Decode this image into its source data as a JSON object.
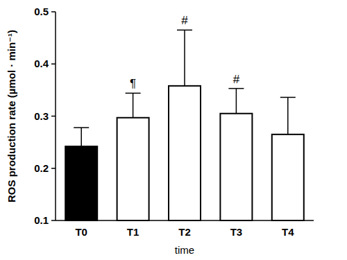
{
  "chart_data": {
    "type": "bar",
    "x_label": "time",
    "y_label": "ROS production rate (µmol · min⁻¹)",
    "categories": [
      "T0",
      "T1",
      "T2",
      "T3",
      "T4"
    ],
    "values": [
      0.242,
      0.297,
      0.358,
      0.305,
      0.265
    ],
    "errors": [
      0.036,
      0.047,
      0.107,
      0.048,
      0.071
    ],
    "annotations": [
      null,
      "¶",
      "#",
      "#",
      null
    ],
    "colors": [
      "#000000",
      "#ffffff",
      "#ffffff",
      "#ffffff",
      "#ffffff"
    ],
    "ylim": [
      0.1,
      0.5
    ],
    "yticks": [
      0.1,
      0.2,
      0.3,
      0.4,
      0.5
    ],
    "grid": false
  }
}
